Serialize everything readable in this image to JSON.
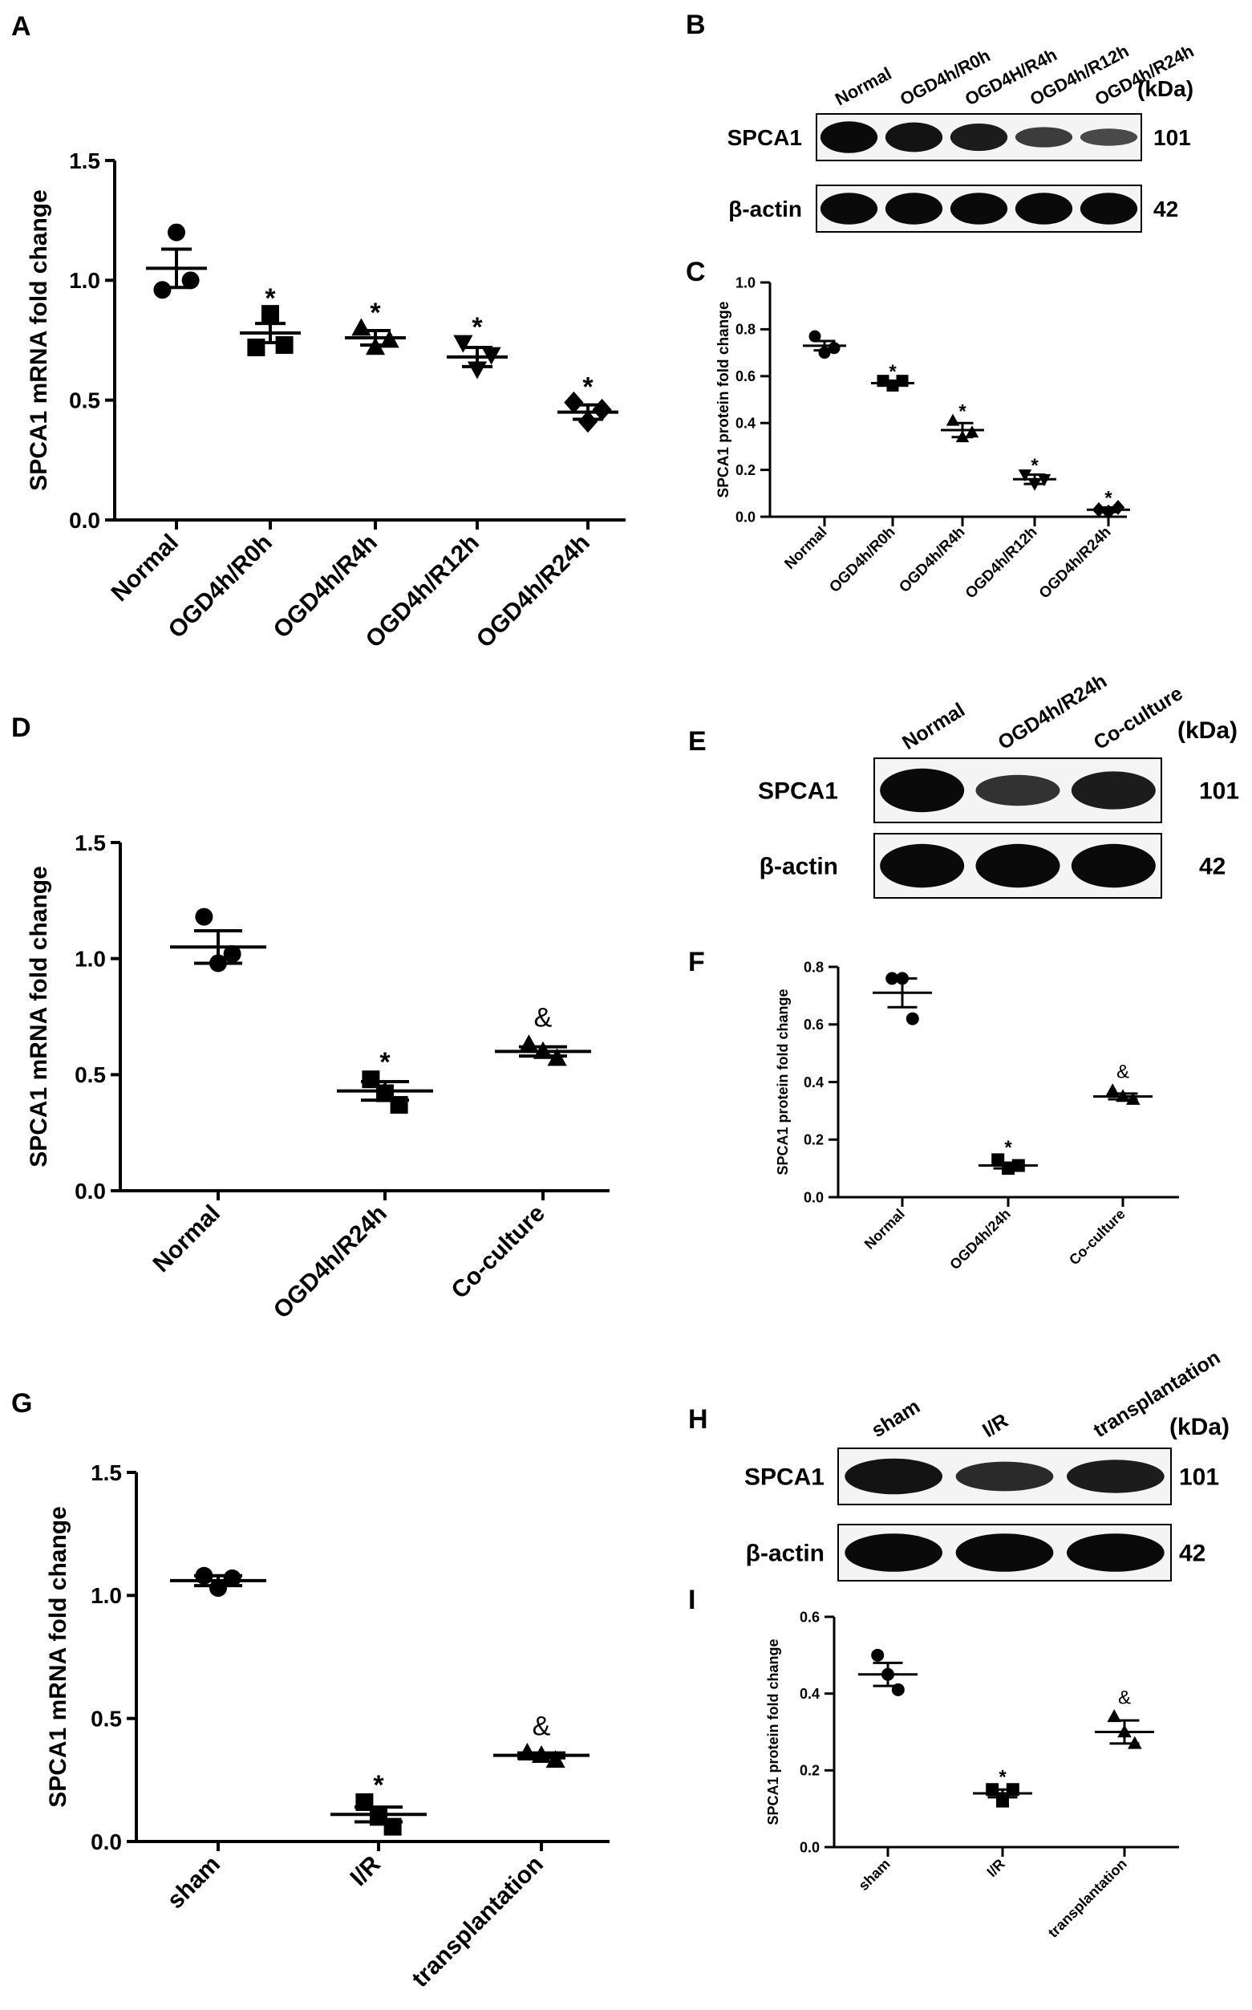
{
  "panels": [
    {
      "letter": "A"
    },
    {
      "letter": "B"
    },
    {
      "letter": "C"
    },
    {
      "letter": "D"
    },
    {
      "letter": "E"
    },
    {
      "letter": "F"
    },
    {
      "letter": "G"
    },
    {
      "letter": "H"
    },
    {
      "letter": "I"
    }
  ],
  "chart_data": [
    {
      "id": "A",
      "type": "scatter",
      "ylabel": "SPCA1 mRNA fold change",
      "categories": [
        "Normal",
        "OGD4h/R0h",
        "OGD4h/R4h",
        "OGD4h/R12h",
        "OGD4h/R24h"
      ],
      "ylim": [
        0,
        1.5
      ],
      "yticks": [
        "0.0",
        "0.5",
        "1.0",
        "1.5"
      ],
      "markers": [
        "circle",
        "square",
        "triangle-up",
        "triangle-down",
        "diamond"
      ],
      "points": [
        [
          0.96,
          1.2,
          1.0
        ],
        [
          0.72,
          0.86,
          0.73
        ],
        [
          0.8,
          0.72,
          0.75
        ],
        [
          0.74,
          0.63,
          0.69
        ],
        [
          0.49,
          0.41,
          0.46
        ]
      ],
      "means": [
        1.05,
        0.78,
        0.76,
        0.68,
        0.45
      ],
      "sem": [
        0.08,
        0.04,
        0.03,
        0.04,
        0.03
      ],
      "annotations": [
        "",
        "*",
        "*",
        "*",
        "*"
      ]
    },
    {
      "id": "C",
      "type": "scatter",
      "ylabel": "SPCA1 protein fold change",
      "categories": [
        "Normal",
        "OGD4h/R0h",
        "OGD4h/R4h",
        "OGD4h/R12h",
        "OGD4h/R24h"
      ],
      "ylim": [
        0,
        1.0
      ],
      "yticks": [
        "0.0",
        "0.2",
        "0.4",
        "0.6",
        "0.8",
        "1.0"
      ],
      "markers": [
        "circle",
        "square",
        "triangle-up",
        "triangle-down",
        "diamond"
      ],
      "points": [
        [
          0.77,
          0.7,
          0.72
        ],
        [
          0.58,
          0.56,
          0.58
        ],
        [
          0.41,
          0.34,
          0.36
        ],
        [
          0.18,
          0.14,
          0.16
        ],
        [
          0.03,
          0.02,
          0.04
        ]
      ],
      "means": [
        0.73,
        0.57,
        0.37,
        0.16,
        0.03
      ],
      "sem": [
        0.02,
        0.01,
        0.03,
        0.02,
        0.01
      ],
      "annotations": [
        "",
        "*",
        "*",
        "*",
        "*"
      ]
    },
    {
      "id": "D",
      "type": "scatter",
      "ylabel": "SPCA1 mRNA fold change",
      "categories": [
        "Normal",
        "OGD4h/R24h",
        "Co-culture"
      ],
      "ylim": [
        0,
        1.5
      ],
      "yticks": [
        "0.0",
        "0.5",
        "1.0",
        "1.5"
      ],
      "markers": [
        "circle",
        "square",
        "triangle-up"
      ],
      "points": [
        [
          1.18,
          0.98,
          1.02
        ],
        [
          0.48,
          0.42,
          0.37
        ],
        [
          0.63,
          0.6,
          0.57
        ]
      ],
      "means": [
        1.05,
        0.43,
        0.6
      ],
      "sem": [
        0.07,
        0.04,
        0.02
      ],
      "annotations": [
        "",
        "*",
        "&"
      ]
    },
    {
      "id": "F",
      "type": "scatter",
      "ylabel": "SPCA1 protein fold change",
      "categories": [
        "Normal",
        "OGD4h/24h",
        "Co-culture"
      ],
      "ylim": [
        0,
        0.8
      ],
      "yticks": [
        "0.0",
        "0.2",
        "0.4",
        "0.6",
        "0.8"
      ],
      "markers": [
        "circle",
        "square",
        "triangle-up"
      ],
      "points": [
        [
          0.76,
          0.76,
          0.62
        ],
        [
          0.13,
          0.1,
          0.11
        ],
        [
          0.37,
          0.35,
          0.34
        ]
      ],
      "means": [
        0.71,
        0.11,
        0.35
      ],
      "sem": [
        0.05,
        0.01,
        0.01
      ],
      "annotations": [
        "",
        "*",
        "&"
      ]
    },
    {
      "id": "G",
      "type": "scatter",
      "ylabel": "SPCA1 mRNA fold change",
      "categories": [
        "sham",
        "I/R",
        "transplantation"
      ],
      "ylim": [
        0,
        1.5
      ],
      "yticks": [
        "0.0",
        "0.5",
        "1.0",
        "1.5"
      ],
      "markers": [
        "circle",
        "square",
        "triangle-up"
      ],
      "points": [
        [
          1.08,
          1.03,
          1.07
        ],
        [
          0.16,
          0.1,
          0.06
        ],
        [
          0.36,
          0.35,
          0.33
        ]
      ],
      "means": [
        1.06,
        0.11,
        0.35
      ],
      "sem": [
        0.02,
        0.03,
        0.01
      ],
      "annotations": [
        "",
        "*",
        "&"
      ]
    },
    {
      "id": "I",
      "type": "scatter",
      "ylabel": "SPCA1 protein fold change",
      "categories": [
        "sham",
        "I/R",
        "transplantation"
      ],
      "ylim": [
        0,
        0.6
      ],
      "yticks": [
        "0.0",
        "0.2",
        "0.4",
        "0.6"
      ],
      "markers": [
        "circle",
        "square",
        "triangle-up"
      ],
      "points": [
        [
          0.5,
          0.45,
          0.41
        ],
        [
          0.15,
          0.12,
          0.15
        ],
        [
          0.34,
          0.3,
          0.27
        ]
      ],
      "means": [
        0.45,
        0.14,
        0.3
      ],
      "sem": [
        0.03,
        0.01,
        0.03
      ],
      "annotations": [
        "",
        "*",
        "&"
      ]
    }
  ],
  "blots": [
    {
      "id": "B",
      "lanes": [
        "Normal",
        "OGD4h/R0h",
        "OGD4H/R4h",
        "OGD4h/R12h",
        "OGD4h/R24h"
      ],
      "unit": "(kDa)",
      "rows": [
        {
          "name": "SPCA1",
          "kda": "101",
          "intensity": [
            1.0,
            0.9,
            0.8,
            0.45,
            0.3
          ]
        },
        {
          "name": "β-actin",
          "kda": "42",
          "intensity": [
            1.0,
            1.0,
            1.0,
            1.0,
            1.0
          ]
        }
      ]
    },
    {
      "id": "E",
      "lanes": [
        "Normal",
        "OGD4h/R24h",
        "Co-culture"
      ],
      "unit": "(kDa)",
      "rows": [
        {
          "name": "SPCA1",
          "kda": "101",
          "intensity": [
            1.0,
            0.55,
            0.8
          ]
        },
        {
          "name": "β-actin",
          "kda": "42",
          "intensity": [
            1.0,
            1.0,
            1.0
          ]
        }
      ]
    },
    {
      "id": "H",
      "lanes": [
        "sham",
        "I/R",
        "transplantation"
      ],
      "unit": "(kDa)",
      "rows": [
        {
          "name": "SPCA1",
          "kda": "101",
          "intensity": [
            0.9,
            0.65,
            0.8
          ]
        },
        {
          "name": "β-actin",
          "kda": "42",
          "intensity": [
            1.0,
            1.0,
            1.0
          ]
        }
      ]
    }
  ]
}
